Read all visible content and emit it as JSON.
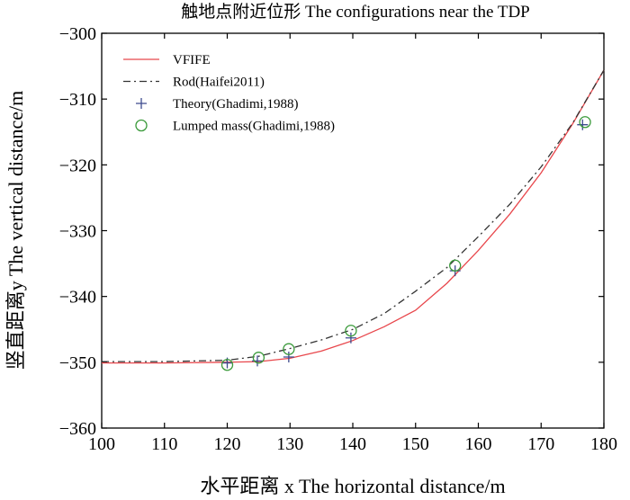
{
  "chart_data": {
    "type": "line",
    "title": "触地点附近位形 The configurations near the TDP",
    "xlabel": "水平距离 x The horizontal distance/m",
    "ylabel": "竖直距离y The vertical distance/m",
    "xlim": [
      100,
      180
    ],
    "ylim": [
      -360,
      -300
    ],
    "x_ticks": [
      100,
      110,
      120,
      130,
      140,
      150,
      160,
      170,
      180
    ],
    "y_ticks": [
      -300,
      -310,
      -320,
      -330,
      -340,
      -350,
      -360
    ],
    "x_tick_labels": [
      "100",
      "110",
      "120",
      "130",
      "140",
      "150",
      "160",
      "170",
      "180"
    ],
    "y_tick_labels": [
      "−300",
      "−310",
      "−320",
      "−330",
      "−340",
      "−350",
      "−360"
    ],
    "grid": false,
    "legend_position": "top-left",
    "series": [
      {
        "name": "VFIFE",
        "style": "solid",
        "color": "#e8474c",
        "x": [
          100,
          110,
          120,
          125,
          130,
          135,
          140,
          145,
          150,
          155,
          160,
          165,
          170,
          175,
          180
        ],
        "y": [
          -350.1,
          -350.1,
          -350.0,
          -349.9,
          -349.4,
          -348.3,
          -346.7,
          -344.6,
          -342.1,
          -338.0,
          -333.0,
          -327.5,
          -321.2,
          -313.8,
          -305.6
        ]
      },
      {
        "name": "Rod(Haifei2011)",
        "style": "dashdot",
        "color": "#333333",
        "x": [
          100,
          110,
          120,
          125,
          130,
          135,
          140,
          145,
          150,
          155,
          160,
          165,
          170,
          175,
          180
        ],
        "y": [
          -349.9,
          -349.9,
          -349.7,
          -349.1,
          -347.9,
          -346.6,
          -345.0,
          -342.6,
          -339.2,
          -335.6,
          -330.9,
          -326.0,
          -320.3,
          -313.7,
          -305.6
        ]
      },
      {
        "name": "Theory(Ghadimi,1988)",
        "style": "marker-plus",
        "color": "#3d4b8e",
        "x": [
          120.0,
          124.8,
          129.8,
          139.7,
          156.3,
          176.6
        ],
        "y": [
          -350.1,
          -349.8,
          -349.2,
          -346.3,
          -336.1,
          -313.9
        ]
      },
      {
        "name": "Lumped mass(Ghadimi,1988)",
        "style": "marker-circle",
        "color": "#3a9a3a",
        "x": [
          120.0,
          125.0,
          129.8,
          139.7,
          156.3,
          177.0
        ],
        "y": [
          -350.4,
          -349.3,
          -348.0,
          -345.2,
          -335.3,
          -313.5
        ]
      }
    ]
  }
}
